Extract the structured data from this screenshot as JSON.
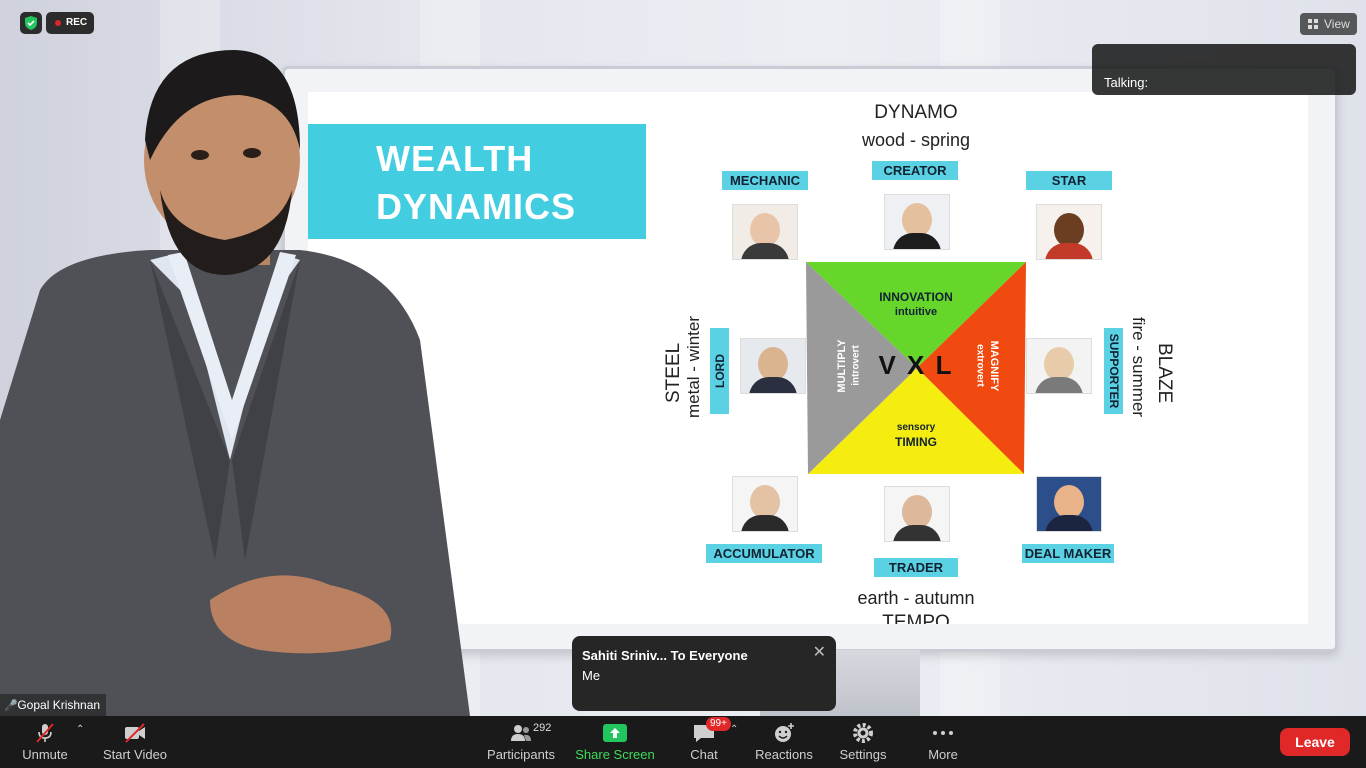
{
  "status": {
    "rec_label": "REC"
  },
  "view_button": {
    "label": "View"
  },
  "talking_banner": {
    "label": "Talking:"
  },
  "slide": {
    "title_line1": "WEALTH",
    "title_line2": "DYNAMICS",
    "top": {
      "name": "DYNAMO",
      "sub": "wood - spring"
    },
    "bottom": {
      "name": "TEMPO",
      "sub": "earth - autumn"
    },
    "left": {
      "name": "STEEL",
      "sub": "metal - winter"
    },
    "right": {
      "name": "BLAZE",
      "sub": "fire - summer"
    },
    "profiles": {
      "mechanic": "MECHANIC",
      "creator": "CREATOR",
      "star": "STAR",
      "lord": "LORD",
      "supporter": "SUPPORTER",
      "accumulator": "ACCUMULATOR",
      "trader": "TRADER",
      "deal_maker": "DEAL MAKER"
    },
    "center": {
      "innovation": "INNOVATION",
      "intuitive": "intuitive",
      "timing": "TIMING",
      "sensory": "sensory",
      "multiply": "MULTIPLY",
      "introvert": "introvert",
      "magnify": "MAGNIFY",
      "extrovert": "extrovert",
      "vxl": "V X L"
    },
    "colors": {
      "accent": "#5ad2e3",
      "green": "#66d62a",
      "orange": "#f04a10",
      "yellow": "#f5ec10",
      "gray": "#9a9a9a"
    }
  },
  "presenter": {
    "name": "Gopal Krishnan"
  },
  "chat_popup": {
    "sender": "Sahiti Sriniv... To Everyone",
    "message": "Me",
    "close": "✕"
  },
  "toolbar": {
    "unmute": "Unmute",
    "start_video": "Start Video",
    "participants": "Participants",
    "participants_count": "292",
    "share_screen": "Share Screen",
    "chat": "Chat",
    "chat_badge": "99+",
    "reactions": "Reactions",
    "settings": "Settings",
    "more": "More",
    "leave": "Leave"
  }
}
